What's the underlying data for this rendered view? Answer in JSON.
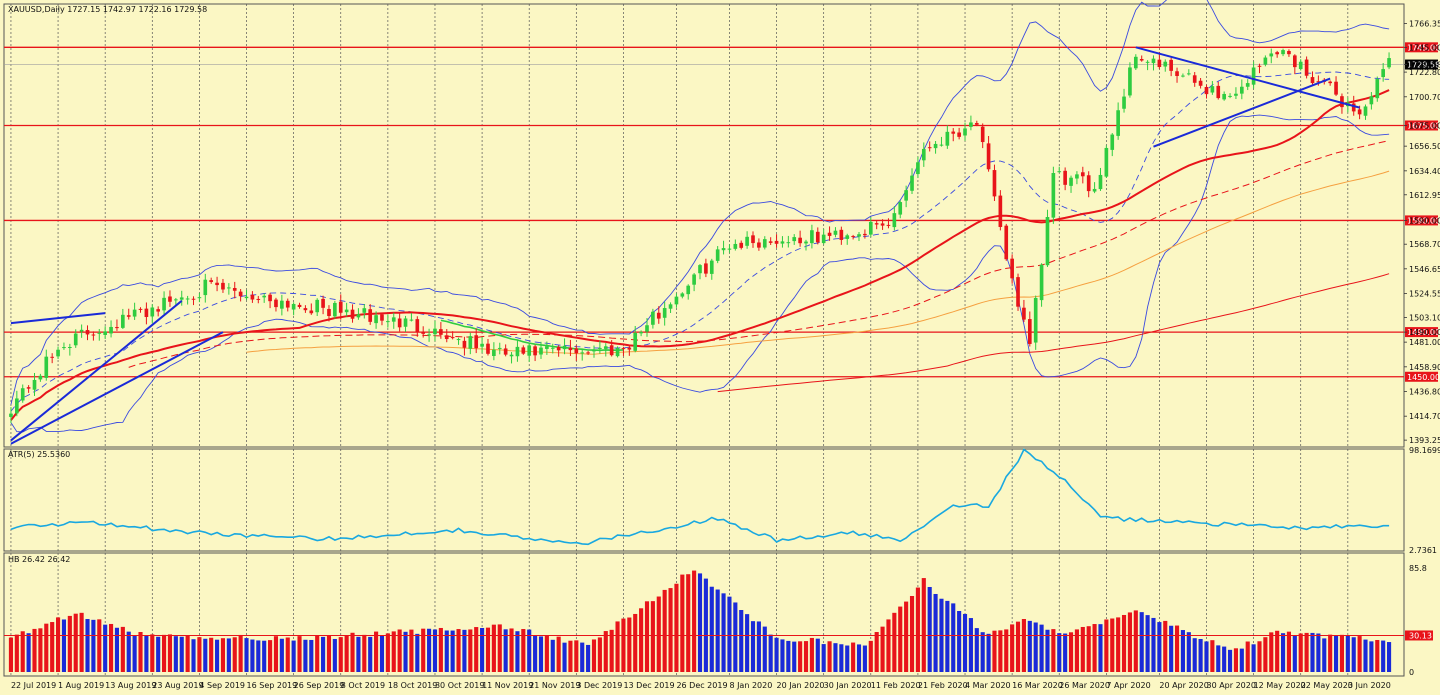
{
  "chart_data": {
    "type": "candlestick",
    "main": {
      "header": "XAUUSD,Daily  1727.15 1742.97 1722.16 1729.58",
      "ylim": [
        1388,
        1782
      ],
      "yticks": [
        "1766.35",
        "1745.00",
        "1729.58",
        "1722.80",
        "1700.70",
        "1675.00",
        "1656.50",
        "1634.40",
        "1612.95",
        "1590.00",
        "1568.70",
        "1546.65",
        "1524.55",
        "1503.10",
        "1490.00",
        "1481.00",
        "1458.90",
        "1436.80",
        "1414.70",
        "1393.25"
      ],
      "hlines": [
        {
          "value": 1745.0,
          "label": "1745.00"
        },
        {
          "value": 1675.0,
          "label": "1675.00"
        },
        {
          "value": 1590.0,
          "label": "1590.00"
        },
        {
          "value": 1490.0,
          "label": "1490.00"
        },
        {
          "value": 1450.0,
          "label": "1450.00"
        }
      ],
      "current_price": {
        "value": 1729.58,
        "label": "1729.58"
      },
      "trend_anchors": [
        {
          "date": "2019-07-22",
          "value": 1424
        },
        {
          "date": "2019-08-02",
          "value": 1480
        },
        {
          "date": "2019-08-13",
          "value": 1495
        },
        {
          "date": "2019-09-05",
          "value": 1530
        },
        {
          "date": "2019-10-28",
          "value": 1495
        },
        {
          "date": "2019-11-14",
          "value": 1470
        },
        {
          "date": "2019-12-13",
          "value": 1476
        },
        {
          "date": "2020-01-08",
          "value": 1570
        },
        {
          "date": "2020-01-30",
          "value": 1575
        },
        {
          "date": "2020-02-14",
          "value": 1585
        },
        {
          "date": "2020-02-24",
          "value": 1655
        },
        {
          "date": "2020-03-06",
          "value": 1680
        },
        {
          "date": "2020-03-12",
          "value": 1580
        },
        {
          "date": "2020-03-19",
          "value": 1475
        },
        {
          "date": "2020-03-25",
          "value": 1630
        },
        {
          "date": "2020-04-03",
          "value": 1620
        },
        {
          "date": "2020-04-14",
          "value": 1740
        },
        {
          "date": "2020-04-23",
          "value": 1720
        },
        {
          "date": "2020-05-06",
          "value": 1700
        },
        {
          "date": "2020-05-18",
          "value": 1745
        },
        {
          "date": "2020-06-05",
          "value": 1685
        },
        {
          "date": "2020-06-12",
          "value": 1729.58
        }
      ]
    },
    "atr": {
      "label": "ATR(5) 25.5360",
      "ylim": [
        2.7361,
        98.1699
      ],
      "yticks": [
        "98.1699",
        "2.7361"
      ],
      "anchors": [
        {
          "date": "2019-07-22",
          "value": 24
        },
        {
          "date": "2019-08-08",
          "value": 30
        },
        {
          "date": "2019-08-30",
          "value": 20
        },
        {
          "date": "2019-10-03",
          "value": 13
        },
        {
          "date": "2019-11-05",
          "value": 22
        },
        {
          "date": "2019-12-03",
          "value": 8
        },
        {
          "date": "2020-01-06",
          "value": 33
        },
        {
          "date": "2020-01-20",
          "value": 12
        },
        {
          "date": "2020-02-06",
          "value": 19
        },
        {
          "date": "2020-02-18",
          "value": 12
        },
        {
          "date": "2020-03-02",
          "value": 46
        },
        {
          "date": "2020-03-10",
          "value": 45
        },
        {
          "date": "2020-03-18",
          "value": 97
        },
        {
          "date": "2020-03-27",
          "value": 70
        },
        {
          "date": "2020-04-06",
          "value": 33
        },
        {
          "date": "2020-04-22",
          "value": 30
        },
        {
          "date": "2020-05-20",
          "value": 24
        },
        {
          "date": "2020-06-12",
          "value": 25.536
        }
      ]
    },
    "hb": {
      "label": "HB 26.42 26.42",
      "ylim": [
        0,
        85.8
      ],
      "yticks": [
        "85.8",
        "0"
      ],
      "level": {
        "value": 30.13,
        "label": "30.13"
      },
      "anchors": [
        {
          "date": "2019-07-22",
          "value": 28
        },
        {
          "date": "2019-08-06",
          "value": 48
        },
        {
          "date": "2019-08-22",
          "value": 29
        },
        {
          "date": "2019-10-01",
          "value": 28
        },
        {
          "date": "2019-11-14",
          "value": 38
        },
        {
          "date": "2019-12-05",
          "value": 22
        },
        {
          "date": "2019-12-31",
          "value": 85
        },
        {
          "date": "2020-01-20",
          "value": 28
        },
        {
          "date": "2020-02-10",
          "value": 22
        },
        {
          "date": "2020-02-24",
          "value": 75
        },
        {
          "date": "2020-03-10",
          "value": 30
        },
        {
          "date": "2020-03-18",
          "value": 42
        },
        {
          "date": "2020-03-30",
          "value": 32
        },
        {
          "date": "2020-04-14",
          "value": 50
        },
        {
          "date": "2020-05-06",
          "value": 18
        },
        {
          "date": "2020-05-18",
          "value": 32
        },
        {
          "date": "2020-06-12",
          "value": 26.42
        }
      ]
    },
    "x_axis": {
      "start": "2019-07-22",
      "end": "2020-06-12",
      "ticks": [
        {
          "date": "2019-07-22",
          "label": "22 Jul 2019"
        },
        {
          "date": "2019-08-01",
          "label": "1 Aug 2019"
        },
        {
          "date": "2019-08-13",
          "label": "13 Aug 2019"
        },
        {
          "date": "2019-08-23",
          "label": "23 Aug 2019"
        },
        {
          "date": "2019-09-04",
          "label": "4 Sep 2019"
        },
        {
          "date": "2019-09-16",
          "label": "16 Sep 2019"
        },
        {
          "date": "2019-09-26",
          "label": "26 Sep 2019"
        },
        {
          "date": "2019-10-08",
          "label": "8 Oct 2019"
        },
        {
          "date": "2019-10-18",
          "label": "18 Oct 2019"
        },
        {
          "date": "2019-10-30",
          "label": "30 Oct 2019"
        },
        {
          "date": "2019-11-11",
          "label": "11 Nov 2019"
        },
        {
          "date": "2019-11-21",
          "label": "21 Nov 2019"
        },
        {
          "date": "2019-12-03",
          "label": "3 Dec 2019"
        },
        {
          "date": "2019-12-13",
          "label": "13 Dec 2019"
        },
        {
          "date": "2019-12-26",
          "label": "26 Dec 2019"
        },
        {
          "date": "2020-01-08",
          "label": "8 Jan 2020"
        },
        {
          "date": "2020-01-20",
          "label": "20 Jan 2020"
        },
        {
          "date": "2020-01-30",
          "label": "30 Jan 2020"
        },
        {
          "date": "2020-02-11",
          "label": "11 Feb 2020"
        },
        {
          "date": "2020-02-21",
          "label": "21 Feb 2020"
        },
        {
          "date": "2020-03-04",
          "label": "4 Mar 2020"
        },
        {
          "date": "2020-03-16",
          "label": "16 Mar 2020"
        },
        {
          "date": "2020-03-26",
          "label": "26 Mar 2020"
        },
        {
          "date": "2020-04-07",
          "label": "7 Apr 2020"
        },
        {
          "date": "2020-04-20",
          "label": "20 Apr 2020"
        },
        {
          "date": "2020-04-30",
          "label": "30 Apr 2020"
        },
        {
          "date": "2020-05-12",
          "label": "12 May 2020"
        },
        {
          "date": "2020-05-22",
          "label": "22 May 2020"
        },
        {
          "date": "2020-06-03",
          "label": "3 Jun 2020"
        }
      ]
    },
    "colors": {
      "background": "#fbf7c4",
      "grid": "#555555",
      "bull": "#2ecc40",
      "bear": "#e8141a",
      "level_line": "#e8141a",
      "trendline": "#1a2ad8",
      "atr": "#19a8e0",
      "hb_up": "#e8141a",
      "hb_down": "#1a2ad8",
      "ma_fast": "#e8141a",
      "ma_orange": "#f5a040"
    }
  }
}
